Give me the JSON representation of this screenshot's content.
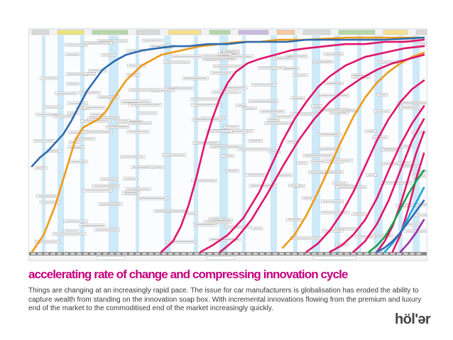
{
  "title": "accelerating rate of change and compressing innovation cycle",
  "body": "Things are changing at an increasingly rapid pace. The issue for car manufacturers is globalisation has eroded the ability to capture wealth from standing on the innovation soap box. With incremental innovations flowing from the premium and luxury end of the market to the commoditised end of the market increasingly quickly.",
  "logo": "höl'ər",
  "chart_data": {
    "type": "line",
    "title": "",
    "x_range": [
      0,
      100
    ],
    "y_range": [
      0,
      100
    ],
    "grid": true,
    "series": [
      {
        "color": "#ee9a17",
        "x": [
          0,
          3,
          6,
          9,
          11,
          13,
          15,
          17,
          19,
          21,
          24,
          28,
          33,
          38,
          43,
          48,
          53,
          58,
          63,
          70,
          80,
          90,
          100
        ],
        "y": [
          0,
          8,
          22,
          40,
          52,
          58,
          60,
          62,
          66,
          72,
          80,
          87,
          92,
          94,
          96,
          97,
          98,
          98,
          99,
          99,
          100,
          100,
          100
        ]
      },
      {
        "color": "#ee9a17",
        "x": [
          64,
          67,
          70,
          73,
          76,
          79,
          82,
          85,
          88,
          91,
          94,
          97,
          100
        ],
        "y": [
          2,
          8,
          17,
          28,
          40,
          52,
          63,
          72,
          79,
          84,
          88,
          91,
          93
        ]
      },
      {
        "color": "#2e6bb0",
        "x": [
          0,
          2,
          4,
          6,
          8,
          10,
          12,
          14,
          16,
          18,
          21,
          24,
          28,
          32,
          36,
          40,
          45,
          50,
          55,
          60,
          65,
          70,
          75,
          80,
          90,
          100
        ],
        "y": [
          40,
          44,
          47,
          51,
          55,
          61,
          68,
          75,
          80,
          85,
          89,
          92,
          94,
          95,
          96,
          96,
          97,
          97,
          98,
          98,
          98,
          99,
          99,
          99,
          99,
          100
        ]
      },
      {
        "color": "#e0156b",
        "x": [
          33,
          36,
          38,
          40,
          42,
          44,
          46,
          48,
          50,
          52,
          55,
          58,
          62,
          66,
          70,
          75,
          80,
          85,
          90,
          95,
          100
        ],
        "y": [
          0,
          5,
          12,
          22,
          35,
          50,
          62,
          72,
          79,
          84,
          88,
          90,
          92,
          94,
          95,
          96,
          97,
          97,
          98,
          98,
          99
        ]
      },
      {
        "color": "#e0156b",
        "x": [
          43,
          46,
          50,
          54,
          58,
          61,
          64,
          67,
          70,
          73,
          76,
          80,
          85,
          90,
          95,
          100
        ],
        "y": [
          0,
          3,
          8,
          16,
          28,
          40,
          52,
          62,
          70,
          77,
          82,
          87,
          91,
          93,
          95,
          96
        ]
      },
      {
        "color": "#e0156b",
        "x": [
          48,
          52,
          56,
          60,
          64,
          68,
          72,
          76,
          80,
          84,
          88,
          92,
          96,
          100
        ],
        "y": [
          0,
          6,
          15,
          27,
          40,
          52,
          62,
          70,
          76,
          81,
          85,
          88,
          90,
          92
        ]
      },
      {
        "color": "#e0156b",
        "x": [
          70,
          73,
          76,
          79,
          82,
          85,
          88,
          91,
          94,
          97,
          100
        ],
        "y": [
          0,
          4,
          10,
          18,
          28,
          40,
          52,
          62,
          70,
          76,
          80
        ]
      },
      {
        "color": "#e0156b",
        "x": [
          76,
          79,
          82,
          85,
          88,
          91,
          94,
          97,
          100
        ],
        "y": [
          0,
          3,
          8,
          15,
          25,
          38,
          50,
          60,
          68
        ]
      },
      {
        "color": "#e0156b",
        "x": [
          82,
          85,
          88,
          91,
          94,
          97,
          100
        ],
        "y": [
          0,
          5,
          13,
          24,
          38,
          52,
          62
        ]
      },
      {
        "color": "#e0156b",
        "x": [
          88,
          90,
          92,
          94,
          96,
          98,
          100
        ],
        "y": [
          0,
          5,
          12,
          22,
          34,
          46,
          56
        ]
      },
      {
        "color": "#e0156b",
        "x": [
          92,
          94,
          96,
          98,
          100
        ],
        "y": [
          0,
          8,
          20,
          34,
          46
        ]
      },
      {
        "color": "#17a34a",
        "x": [
          86,
          88,
          90,
          92,
          94,
          96,
          98,
          100
        ],
        "y": [
          0,
          3,
          7,
          13,
          20,
          27,
          33,
          38
        ]
      },
      {
        "color": "#1aa6d9",
        "x": [
          90,
          92,
          94,
          96,
          98,
          100
        ],
        "y": [
          0,
          4,
          9,
          16,
          23,
          30
        ]
      },
      {
        "color": "#2e6bb0",
        "x": [
          88,
          90,
          92,
          94,
          96,
          98,
          100
        ],
        "y": [
          0,
          2,
          5,
          9,
          14,
          19,
          24
        ]
      },
      {
        "color": "#9b2fae",
        "x": [
          94,
          96,
          98,
          100
        ],
        "y": [
          0,
          4,
          9,
          15
        ]
      }
    ]
  }
}
